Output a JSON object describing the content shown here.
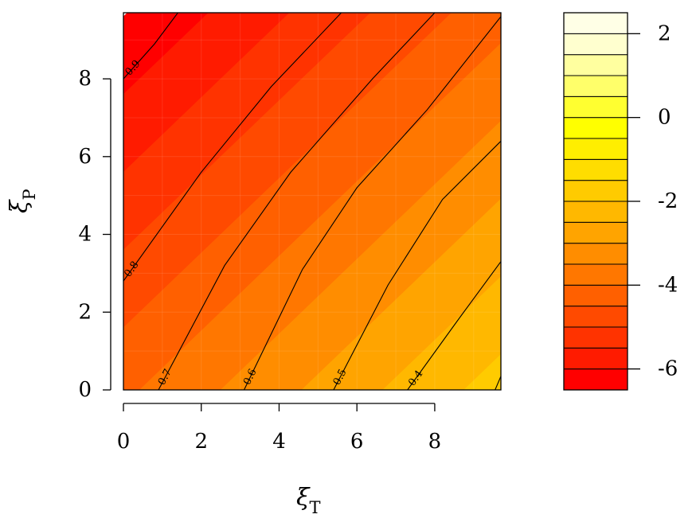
{
  "chart_data": {
    "type": "heatmap",
    "subtype": "filled-contour",
    "xlabel": "ξ",
    "xlabel_sub": "T",
    "ylabel": "ξ",
    "ylabel_sub": "P",
    "xlim": [
      0,
      9.7
    ],
    "ylim": [
      0,
      9.7
    ],
    "x_ticks": [
      "0",
      "2",
      "4",
      "6",
      "8"
    ],
    "y_ticks": [
      "0",
      "2",
      "4",
      "6",
      "8"
    ],
    "field_model": "value = 0.24*xi_T - 0.25*xi_P - 4.1",
    "levels": [
      -6.5,
      -6,
      -5.5,
      -5,
      -4.5,
      -4,
      -3.5,
      -3,
      -2.5,
      -2,
      -1.5,
      -1,
      -0.5,
      0,
      0.5,
      1,
      1.5,
      2,
      2.5
    ],
    "level_colors": [
      "#FF0000",
      "#FF1B00",
      "#FF3300",
      "#FF4A00",
      "#FF6000",
      "#FF7700",
      "#FF8D00",
      "#FFA400",
      "#FFB800",
      "#FFCB00",
      "#FFDD00",
      "#FFEE00",
      "#FFFF00",
      "#FFFF30",
      "#FFFF6A",
      "#FFFF9F",
      "#FFFFCF",
      "#FFFFE6"
    ],
    "colorbar": {
      "range": [
        -6.5,
        2.5
      ],
      "tick_values": [
        2,
        0,
        -2,
        -4,
        -6
      ],
      "tick_labels": [
        "2",
        "0",
        "-2",
        "-4",
        "-6"
      ]
    },
    "contour_lines": [
      {
        "label": "0.9",
        "points": [
          [
            1.4,
            9.7
          ],
          [
            0.8,
            8.9
          ],
          [
            0.0,
            8.0
          ]
        ]
      },
      {
        "label": "0.8",
        "points": [
          [
            5.6,
            9.7
          ],
          [
            3.8,
            7.8
          ],
          [
            2.0,
            5.6
          ],
          [
            0.0,
            2.8
          ]
        ]
      },
      {
        "label": "0.7",
        "points": [
          [
            8.0,
            9.7
          ],
          [
            6.4,
            8.0
          ],
          [
            4.3,
            5.6
          ],
          [
            2.6,
            3.2
          ],
          [
            0.9,
            0.0
          ]
        ]
      },
      {
        "label": "0.6",
        "points": [
          [
            9.7,
            9.6
          ],
          [
            7.8,
            7.2
          ],
          [
            6.0,
            5.2
          ],
          [
            4.6,
            3.1
          ],
          [
            3.1,
            0.0
          ]
        ]
      },
      {
        "label": "0.5",
        "points": [
          [
            9.7,
            6.4
          ],
          [
            8.2,
            4.9
          ],
          [
            6.8,
            2.7
          ],
          [
            5.4,
            0.0
          ]
        ]
      },
      {
        "label": "0.4",
        "points": [
          [
            9.7,
            3.3
          ],
          [
            8.6,
            1.8
          ],
          [
            7.3,
            0.0
          ]
        ]
      },
      {
        "label": "",
        "points": [
          [
            9.7,
            0.35
          ],
          [
            9.55,
            0.0
          ]
        ]
      }
    ]
  }
}
